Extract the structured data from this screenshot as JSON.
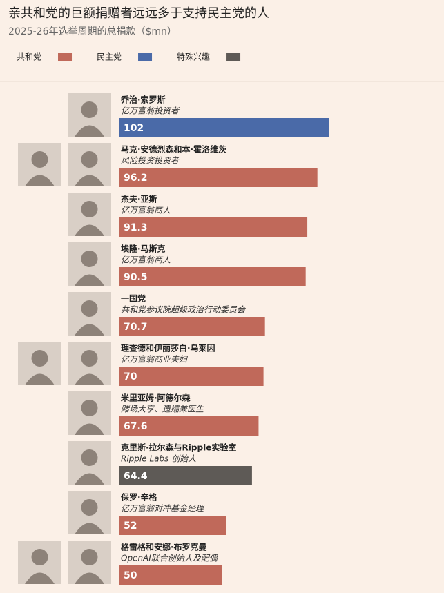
{
  "chart_data": {
    "type": "bar",
    "title": "亲共和党的巨额捐赠者远远多于支持民主党的人",
    "subtitle": "2025-26年选举周期的总捐款（$mn）",
    "categories": [
      "乔治·索罗斯",
      "马克·安德烈森和本·霍洛维茨",
      "杰夫·亚斯",
      "埃隆·马斯克",
      "一国党",
      "理查德和伊丽莎白·乌莱因",
      "米里亚姆·阿德尔森",
      "克里斯·拉尔森与Ripple实验室",
      "保罗·辛格",
      "格雷格和安娜·布罗克曼"
    ],
    "descriptions": [
      "亿万富翁投资者",
      "风险投资投资者",
      "亿万富翁商人",
      "亿万富翁商人",
      "共和党参议院超级政治行动委员会",
      "亿万富翁商业夫妇",
      "赌场大亨、遗孀兼医生",
      "Ripple Labs 创始人",
      "亿万富翁对冲基金经理",
      "OpenAI联合创始人及配偶"
    ],
    "series": [
      {
        "name": "共和党",
        "color": "#c0695a",
        "values": [
          null,
          96.2,
          91.3,
          90.5,
          70.7,
          70,
          67.6,
          null,
          52,
          50
        ]
      },
      {
        "name": "民主党",
        "color": "#4a6aa8",
        "values": [
          102,
          null,
          null,
          null,
          null,
          null,
          null,
          null,
          null,
          null
        ]
      },
      {
        "name": "特殊兴趣",
        "color": "#5e5a56",
        "values": [
          null,
          null,
          null,
          null,
          null,
          null,
          null,
          64.4,
          null,
          null
        ]
      }
    ]
  }
}
